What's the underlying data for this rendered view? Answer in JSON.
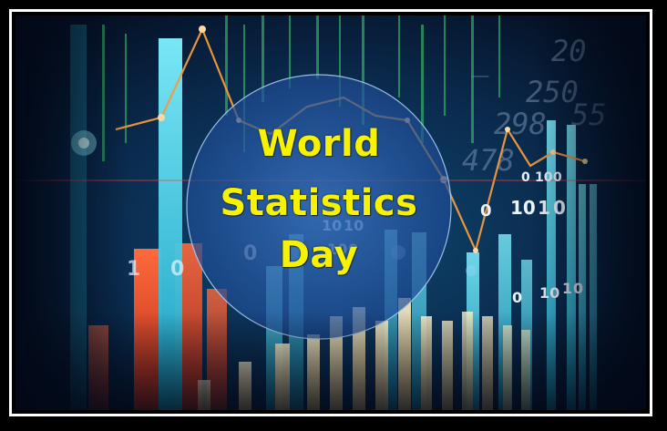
{
  "headline": {
    "line1": "World",
    "line2": "Statistics",
    "line3": "Day"
  },
  "palette": {
    "text_yellow": "#f7f200",
    "circle_fill": "#2a5aa8",
    "bar_cyan": "#3fd6f0",
    "bar_red": "#e8462a",
    "bar_cream": "#f3e2b0",
    "line_orange": "#f39a3c",
    "digits_green": "#4ee07a"
  }
}
